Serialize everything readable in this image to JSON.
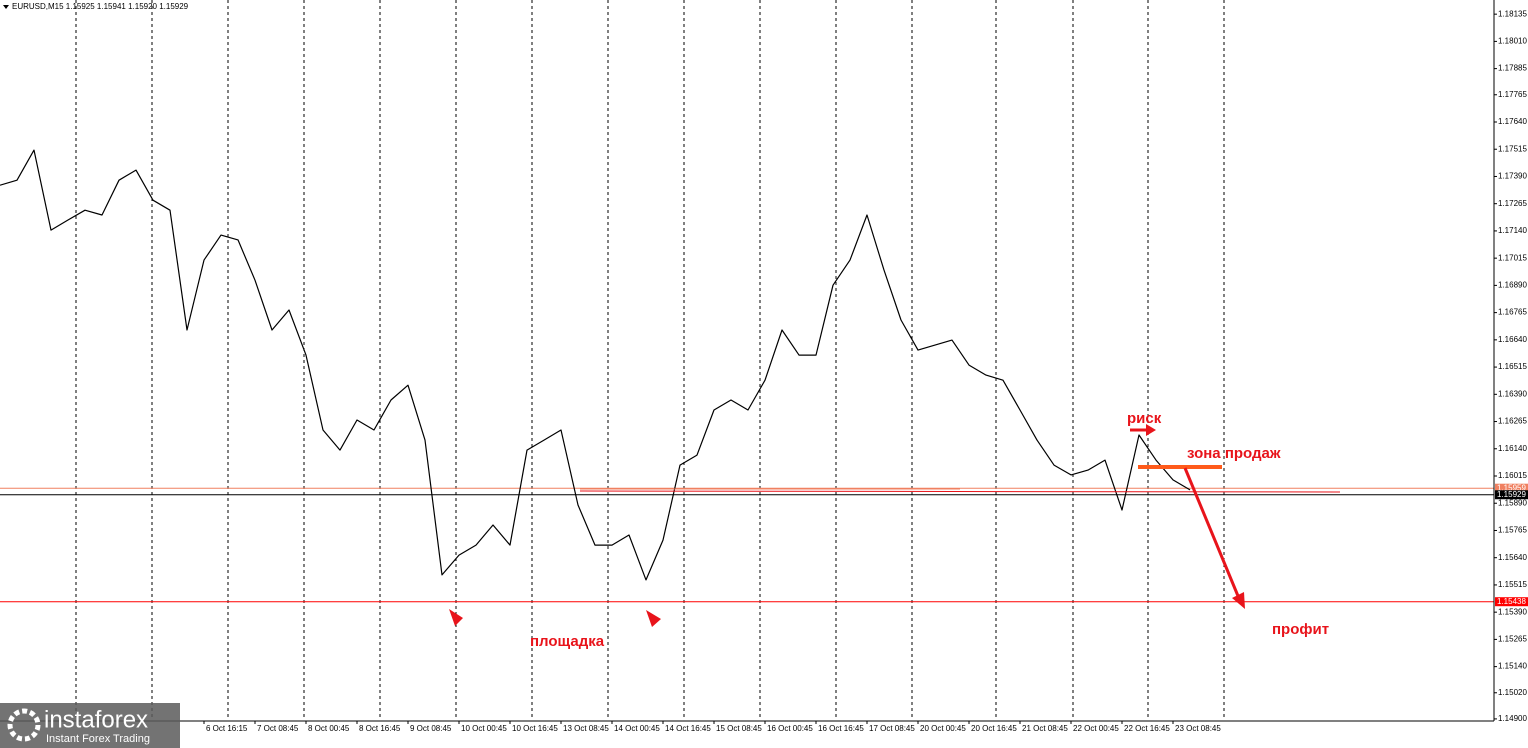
{
  "header": {
    "info": "EURUSD,M15  1.15925 1.15941 1.15920 1.15929"
  },
  "logo": {
    "name": "instaforex",
    "tagline": "Instant Forex Trading"
  },
  "annotations": {
    "risk": "риск",
    "sell_zone": "зона продаж",
    "platform": "площадка",
    "profit": "профит"
  },
  "chart_data": {
    "type": "line",
    "categories": [
      null,
      null,
      null,
      null,
      null,
      null,
      null,
      null,
      null,
      null,
      null,
      null,
      "6 Oct 16:15",
      null,
      null,
      "7 Oct 08:45",
      null,
      null,
      "8 Oct 00:45",
      null,
      null,
      "8 Oct 16:45",
      null,
      null,
      "9 Oct 08:45",
      null,
      null,
      "10 Oct 00:45",
      null,
      null,
      "10 Oct 16:45",
      null,
      null,
      "13 Oct 08:45",
      null,
      null,
      "14 Oct 00:45",
      null,
      null,
      "14 Oct 16:45",
      null,
      null,
      "15 Oct 08:45",
      null,
      null,
      "16 Oct 00:45",
      null,
      null,
      "16 Oct 16:45",
      null,
      null,
      "17 Oct 08:45",
      null,
      null,
      "20 Oct 00:45",
      null,
      null,
      "20 Oct 16:45",
      null,
      null,
      "21 Oct 08:45",
      null,
      null,
      "22 Oct 00:45",
      null,
      null,
      "22 Oct 16:45",
      null,
      null,
      "23 Oct 08:45",
      null
    ],
    "series": [
      {
        "name": "EURUSD,M15",
        "color": "#000000",
        "values": [
          1.1735,
          1.17373,
          1.17511,
          1.17144,
          1.1719,
          1.17235,
          1.17213,
          1.17373,
          1.17419,
          1.17281,
          1.17235,
          1.16685,
          1.17006,
          1.17121,
          1.17099,
          1.16914,
          1.16685,
          1.16777,
          1.1657,
          1.16226,
          1.16134,
          1.16272,
          1.16226,
          1.16364,
          1.16432,
          1.1618,
          1.15561,
          1.15652,
          1.15698,
          1.1579,
          1.15698,
          1.16134,
          1.1618,
          1.16226,
          1.15882,
          1.15698,
          1.15698,
          1.15744,
          1.15538,
          1.15721,
          1.16065,
          1.16111,
          1.16318,
          1.16364,
          1.16318,
          1.16455,
          1.16685,
          1.1657,
          1.1657,
          1.16891,
          1.17006,
          1.17213,
          1.1696,
          1.16731,
          1.16593,
          1.16616,
          1.16639,
          1.16524,
          1.16478,
          1.16455,
          1.16318,
          1.1618,
          1.16065,
          1.1602,
          1.16042,
          1.16088,
          1.15859,
          1.16203,
          1.16088,
          1.15997,
          1.15951
        ]
      }
    ],
    "ylim": [
      1.14895,
      1.182
    ],
    "yticks": [
      1.18135,
      {
        "value": 1.1801,
        "label": "1.18010"
      },
      1.17885,
      1.17765,
      {
        "value": 1.1764,
        "label": "1.17640"
      },
      1.17515,
      {
        "value": 1.1739,
        "label": "1.17390"
      },
      1.17265,
      {
        "value": 1.1714,
        "label": "1.17140"
      },
      1.17015,
      {
        "value": 1.1689,
        "label": "1.16890"
      },
      1.16765,
      {
        "value": 1.1664,
        "label": "1.16640"
      },
      1.16515,
      {
        "value": 1.1639,
        "label": "1.16390"
      },
      1.16265,
      {
        "value": 1.1614,
        "label": "1.16140"
      },
      1.16015,
      {
        "value": 1.1589,
        "label": "1.15890"
      },
      1.15765,
      {
        "value": 1.1564,
        "label": "1.15640"
      },
      1.15515,
      {
        "value": 1.1539,
        "label": "1.15390"
      },
      1.15265,
      {
        "value": 1.1514,
        "label": "1.15140"
      },
      {
        "value": 1.1502,
        "label": "1.15020"
      },
      {
        "value": 1.149,
        "label": "1.14900"
      }
    ],
    "levels": [
      {
        "value": 1.15959,
        "label": "1.15959",
        "color": "#f08060"
      },
      {
        "value": 1.15929,
        "label": "1.15929",
        "color": "#000000"
      },
      {
        "value": 1.15438,
        "label": "1.15438",
        "color": "#ff0000"
      }
    ]
  }
}
